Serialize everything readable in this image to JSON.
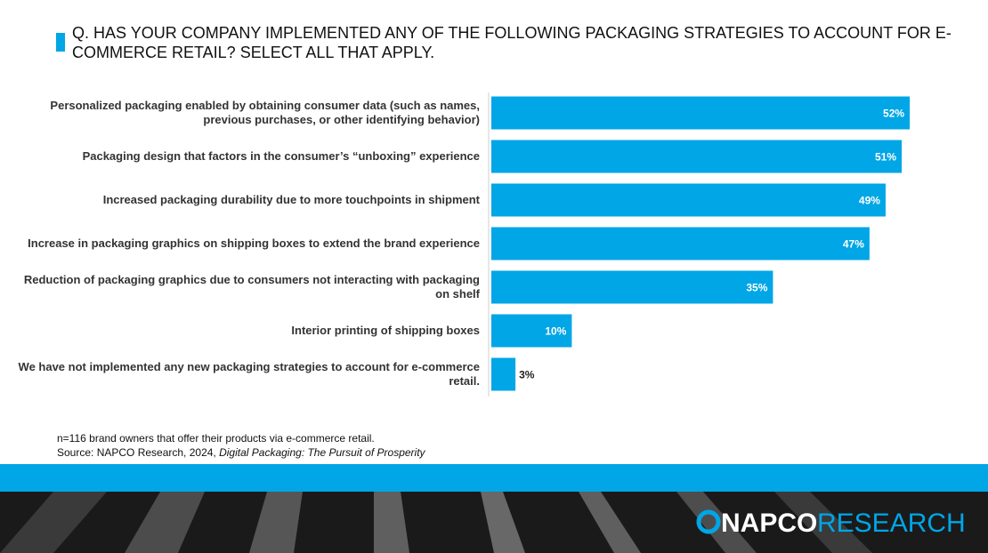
{
  "chart_data": {
    "type": "hbar",
    "title": "Q. HAS YOUR COMPANY IMPLEMENTED ANY OF THE FOLLOWING PACKAGING STRATEGIES TO ACCOUNT FOR E-COMMERCE RETAIL? SELECT ALL THAT APPLY.",
    "categories": [
      "Personalized packaging enabled by obtaining consumer data (such as names, previous purchases, or other identifying behavior)",
      "Packaging design that factors in the consumer’s “unboxing” experience",
      "Increased packaging durability due to more touchpoints in shipment",
      "Increase in packaging graphics on shipping boxes to extend the brand experience",
      "Reduction of packaging graphics due to consumers not interacting with packaging on shelf",
      "Interior printing of shipping boxes",
      "We have not implemented any new packaging strategies to account for e-commerce retail."
    ],
    "values": [
      52,
      51,
      49,
      47,
      35,
      10,
      3
    ],
    "value_labels": [
      "52%",
      "51%",
      "49%",
      "47%",
      "35%",
      "10%",
      "3%"
    ],
    "color": "#00a6e6",
    "note": "n=116 brand owners that offer their products via e-commerce retail.",
    "source": "Source: NAPCO Research, 2024, ",
    "source_title": "Digital Packaging: The Pursuit of Prosperity"
  },
  "logo": {
    "brand": "NAPCO",
    "division": "RESEARCH"
  }
}
